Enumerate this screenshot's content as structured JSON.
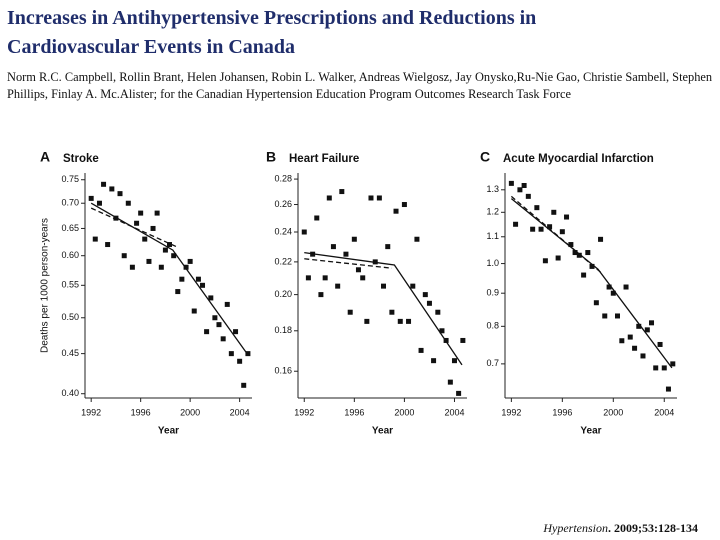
{
  "header": {
    "title_lines": [
      "Increases in Antihypertensive Prescriptions and Reductions in",
      "Cardiovascular Events in Canada"
    ],
    "authors": "Norm R.C. Campbell, Rollin Brant, Helen Johansen, Robin L. Walker, Andreas Wielgosz, Jay Onysko,Ru-Nie Gao, Christie Sambell, Stephen Phillips, Finlay A. Mc.Alister; for the Canadian Hypertension Education Program Outcomes Research Task Force"
  },
  "citation": {
    "journal": "Hypertension",
    "details": ". 2009;53:128-134"
  },
  "chart_data": [
    {
      "type": "scatter",
      "panel": "A",
      "title": "Stroke",
      "xlabel": "Year",
      "ylabel": "Deaths per 1000 person-years",
      "log": true,
      "color": "#111111",
      "xlim": [
        1991.5,
        2005
      ],
      "ylim": [
        0.395,
        0.765
      ],
      "xticks": [
        1992,
        1996,
        2000,
        2004
      ],
      "yticks": [
        {
          "value": 0.4,
          "label": "0.40"
        },
        0.45,
        {
          "value": 0.5,
          "label": "0.50"
        },
        0.55,
        {
          "value": 0.6,
          "label": "0.60"
        },
        0.65,
        {
          "value": 0.7,
          "label": "0.70"
        },
        0.75
      ],
      "x": [
        1992.0,
        1992.33,
        1992.67,
        1993.0,
        1993.33,
        1993.67,
        1994.0,
        1994.33,
        1994.67,
        1995.0,
        1995.33,
        1995.67,
        1996.0,
        1996.33,
        1996.67,
        1997.0,
        1997.33,
        1997.67,
        1998.0,
        1998.33,
        1998.67,
        1999.0,
        1999.33,
        1999.67,
        2000.0,
        2000.33,
        2000.67,
        2001.0,
        2001.33,
        2001.67,
        2002.0,
        2002.33,
        2002.67,
        2003.0,
        2003.33,
        2003.67,
        2004.0,
        2004.33,
        2004.67
      ],
      "values": [
        0.71,
        0.63,
        0.7,
        0.74,
        0.62,
        0.73,
        0.67,
        0.72,
        0.6,
        0.7,
        0.58,
        0.66,
        0.68,
        0.63,
        0.59,
        0.65,
        0.68,
        0.58,
        0.61,
        0.62,
        0.6,
        0.54,
        0.56,
        0.58,
        0.59,
        0.51,
        0.56,
        0.55,
        0.48,
        0.53,
        0.5,
        0.49,
        0.47,
        0.52,
        0.45,
        0.48,
        0.44,
        0.41,
        0.45
      ],
      "trend": {
        "x": [
          1992,
          1998.6,
          2004.6
        ],
        "values": [
          0.7,
          0.61,
          0.45
        ]
      },
      "dashed_trend": {
        "x": [
          1992,
          1999
        ],
        "values": [
          0.69,
          0.615
        ]
      }
    },
    {
      "type": "scatter",
      "panel": "B",
      "title": "Heart Failure",
      "xlabel": "Year",
      "log": true,
      "color": "#111111",
      "xlim": [
        1991.5,
        2005
      ],
      "ylim": [
        0.148,
        0.285
      ],
      "xticks": [
        1992,
        1996,
        2000,
        2004
      ],
      "yticks": [
        0.16,
        0.18,
        {
          "value": 0.2,
          "label": "0.20"
        },
        0.22,
        0.24,
        0.26,
        0.28
      ],
      "x": [
        1992.0,
        1992.33,
        1992.67,
        1993.0,
        1993.33,
        1993.67,
        1994.0,
        1994.33,
        1994.67,
        1995.0,
        1995.33,
        1995.67,
        1996.0,
        1996.33,
        1996.67,
        1997.0,
        1997.33,
        1997.67,
        1998.0,
        1998.33,
        1998.67,
        1999.0,
        1999.33,
        1999.67,
        2000.0,
        2000.33,
        2000.67,
        2001.0,
        2001.33,
        2001.67,
        2002.0,
        2002.33,
        2002.67,
        2003.0,
        2003.33,
        2003.67,
        2004.0,
        2004.33,
        2004.67
      ],
      "values": [
        0.24,
        0.21,
        0.225,
        0.25,
        0.2,
        0.21,
        0.265,
        0.23,
        0.205,
        0.27,
        0.225,
        0.19,
        0.235,
        0.215,
        0.21,
        0.185,
        0.265,
        0.22,
        0.265,
        0.205,
        0.23,
        0.19,
        0.255,
        0.185,
        0.26,
        0.185,
        0.205,
        0.235,
        0.17,
        0.2,
        0.195,
        0.165,
        0.19,
        0.18,
        0.175,
        0.155,
        0.165,
        0.15,
        0.175
      ],
      "trend": {
        "x": [
          1992,
          1999.2,
          2004.6
        ],
        "values": [
          0.226,
          0.218,
          0.163
        ]
      },
      "dashed_trend": {
        "x": [
          1992,
          1999
        ],
        "values": [
          0.222,
          0.216
        ]
      }
    },
    {
      "type": "scatter",
      "panel": "C",
      "title": "Acute Myocardial Infarction",
      "xlabel": "Year",
      "log": true,
      "color": "#111111",
      "xlim": [
        1991.5,
        2005
      ],
      "ylim": [
        0.62,
        1.38
      ],
      "xticks": [
        1992,
        1996,
        2000,
        2004
      ],
      "yticks": [
        0.7,
        0.8,
        0.9,
        {
          "value": 1.0,
          "label": "1.0"
        },
        1.1,
        1.2,
        1.3
      ],
      "x": [
        1992.0,
        1992.33,
        1992.67,
        1993.0,
        1993.33,
        1993.67,
        1994.0,
        1994.33,
        1994.67,
        1995.0,
        1995.33,
        1995.67,
        1996.0,
        1996.33,
        1996.67,
        1997.0,
        1997.33,
        1997.67,
        1998.0,
        1998.33,
        1998.67,
        1999.0,
        1999.33,
        1999.67,
        2000.0,
        2000.33,
        2000.67,
        2001.0,
        2001.33,
        2001.67,
        2002.0,
        2002.33,
        2002.67,
        2003.0,
        2003.33,
        2003.67,
        2004.0,
        2004.33,
        2004.67
      ],
      "values": [
        1.33,
        1.15,
        1.3,
        1.32,
        1.27,
        1.13,
        1.22,
        1.13,
        1.01,
        1.14,
        1.2,
        1.02,
        1.12,
        1.18,
        1.07,
        1.04,
        1.03,
        0.96,
        1.04,
        0.99,
        0.87,
        1.09,
        0.83,
        0.92,
        0.9,
        0.83,
        0.76,
        0.92,
        0.77,
        0.74,
        0.8,
        0.72,
        0.79,
        0.81,
        0.69,
        0.75,
        0.69,
        0.64,
        0.7
      ],
      "trend": {
        "x": [
          1992,
          1998.8,
          2004.6
        ],
        "values": [
          1.26,
          0.98,
          0.69
        ]
      },
      "dashed_trend": {
        "x": [
          1992,
          1999
        ],
        "values": [
          1.27,
          0.97
        ]
      }
    }
  ]
}
